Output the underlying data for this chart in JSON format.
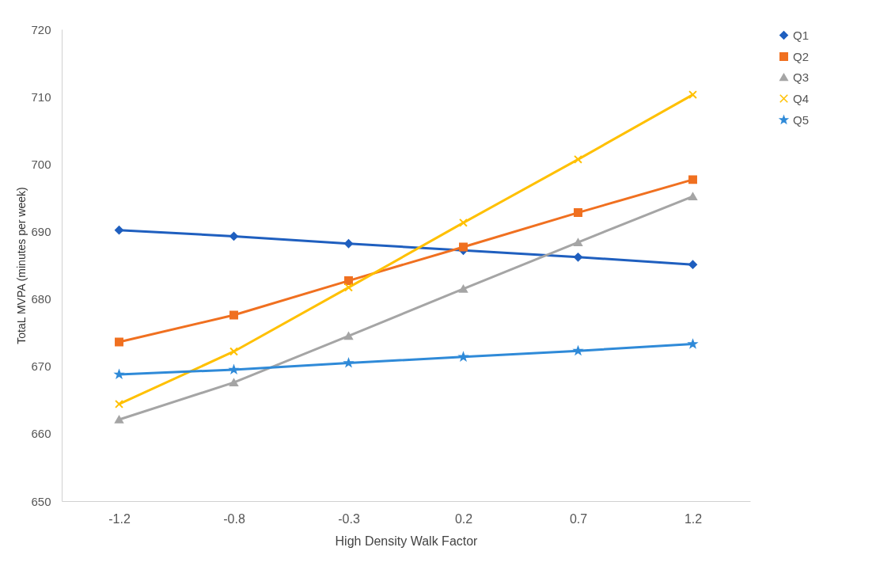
{
  "chart_data": {
    "type": "line",
    "xlabel": "High Density Walk Factor",
    "ylabel": "TotaL MVPA (minutes per week)",
    "categories": [
      "-1.2",
      "-0.8",
      "-0.3",
      "0.2",
      "0.7",
      "1.2"
    ],
    "ylim": [
      650,
      720
    ],
    "yticks": [
      650,
      660,
      670,
      680,
      690,
      700,
      710,
      720
    ],
    "grid": false,
    "legend": "right",
    "line_style": "solid",
    "series": [
      {
        "name": "Q1",
        "color": "#1f5fbf",
        "marker": "diamond",
        "values": [
          690.2,
          689.3,
          688.2,
          687.2,
          686.2,
          685.1
        ]
      },
      {
        "name": "Q2",
        "color": "#f07020",
        "marker": "square",
        "values": [
          673.6,
          677.6,
          682.7,
          687.7,
          692.8,
          697.7
        ]
      },
      {
        "name": "Q3",
        "color": "#a5a5a5",
        "marker": "triangle",
        "values": [
          662.1,
          667.6,
          674.5,
          681.5,
          688.4,
          695.2
        ]
      },
      {
        "name": "Q4",
        "color": "#ffc000",
        "marker": "cross",
        "values": [
          664.4,
          672.2,
          681.7,
          691.3,
          700.7,
          710.3
        ]
      },
      {
        "name": "Q5",
        "color": "#2f8ad8",
        "marker": "star",
        "values": [
          668.8,
          669.5,
          670.5,
          671.4,
          672.3,
          673.3
        ]
      }
    ]
  }
}
